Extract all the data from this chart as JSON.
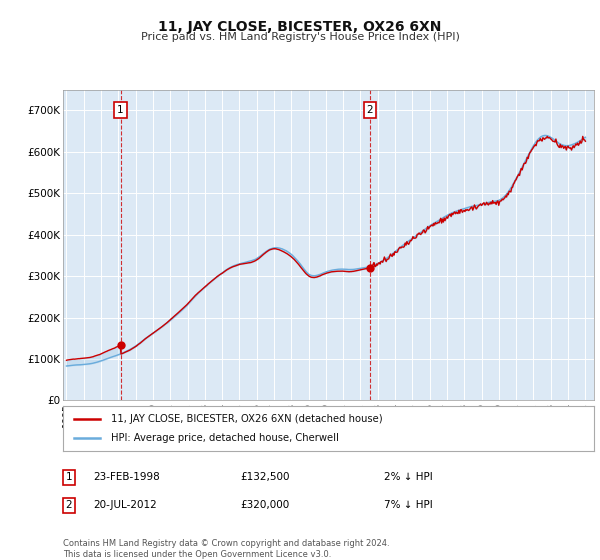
{
  "title": "11, JAY CLOSE, BICESTER, OX26 6XN",
  "subtitle": "Price paid vs. HM Land Registry's House Price Index (HPI)",
  "ylabel_ticks": [
    "£0",
    "£100K",
    "£200K",
    "£300K",
    "£400K",
    "£500K",
    "£600K",
    "£700K"
  ],
  "ytick_values": [
    0,
    100000,
    200000,
    300000,
    400000,
    500000,
    600000,
    700000
  ],
  "ylim_max": 750000,
  "xlim_start": 1994.8,
  "xlim_end": 2025.5,
  "bg_color": "#dce9f5",
  "line1_color": "#cc0000",
  "line2_color": "#6aacdc",
  "legend_label1": "11, JAY CLOSE, BICESTER, OX26 6XN (detached house)",
  "legend_label2": "HPI: Average price, detached house, Cherwell",
  "transaction1_date": "23-FEB-1998",
  "transaction1_price": "£132,500",
  "transaction1_hpi": "2% ↓ HPI",
  "transaction1_year": 1998.13,
  "transaction1_value": 132500,
  "transaction2_date": "20-JUL-2012",
  "transaction2_price": "£320,000",
  "transaction2_hpi": "7% ↓ HPI",
  "transaction2_year": 2012.55,
  "transaction2_value": 320000,
  "footer": "Contains HM Land Registry data © Crown copyright and database right 2024.\nThis data is licensed under the Open Government Licence v3.0."
}
